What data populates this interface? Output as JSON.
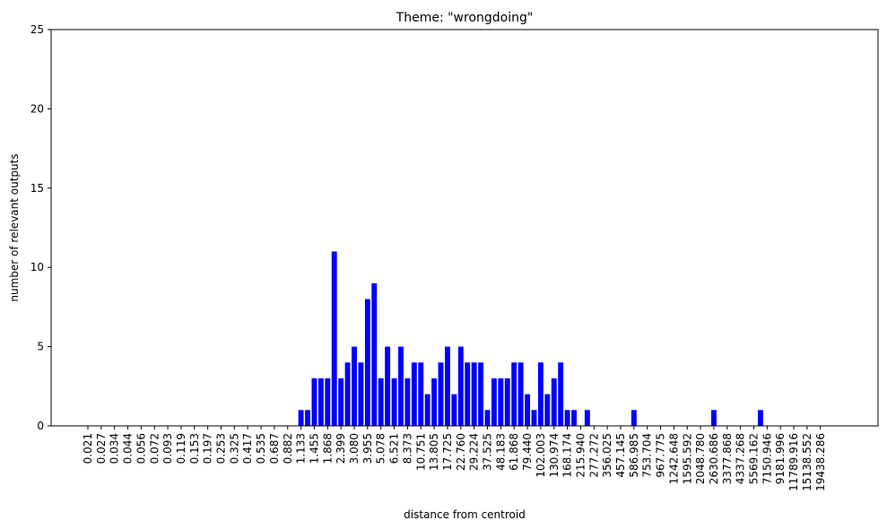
{
  "chart_data": {
    "type": "bar",
    "title": "Theme: \"wrongdoing\"",
    "xlabel": "distance from centroid",
    "ylabel": "number of relevant outputs",
    "ylim": [
      0,
      25
    ],
    "yticks": [
      0,
      5,
      10,
      15,
      20,
      25
    ],
    "bar_color": "#0000ff",
    "tick_labels": [
      "0.021",
      "0.027",
      "0.034",
      "0.044",
      "0.056",
      "0.072",
      "0.093",
      "0.119",
      "0.153",
      "0.197",
      "0.253",
      "0.325",
      "0.417",
      "0.535",
      "0.687",
      "0.882",
      "1.133",
      "1.455",
      "1.868",
      "2.399",
      "3.080",
      "3.955",
      "5.078",
      "6.521",
      "8.373",
      "10.751",
      "13.805",
      "17.725",
      "22.760",
      "29.224",
      "37.525",
      "48.183",
      "61.868",
      "79.440",
      "102.003",
      "130.974",
      "168.174",
      "215.940",
      "277.272",
      "356.025",
      "457.145",
      "586.985",
      "753.704",
      "967.775",
      "1242.648",
      "1595.592",
      "2048.780",
      "2630.686",
      "3377.868",
      "4337.268",
      "5569.162",
      "7150.946",
      "9181.996",
      "11789.916",
      "15138.552",
      "19438.286"
    ],
    "values": [
      0,
      0,
      0,
      0,
      0,
      0,
      0,
      0,
      0,
      0,
      0,
      0,
      0,
      0,
      0,
      0,
      0,
      0,
      0,
      0,
      0,
      0,
      0,
      0,
      0,
      0,
      0,
      0,
      0,
      0,
      0,
      0,
      1,
      1,
      3,
      3,
      3,
      11,
      3,
      4,
      5,
      4,
      8,
      9,
      3,
      5,
      3,
      5,
      3,
      4,
      4,
      2,
      3,
      4,
      5,
      2,
      5,
      4,
      4,
      4,
      1,
      3,
      3,
      3,
      4,
      4,
      2,
      1,
      4,
      2,
      3,
      4,
      1,
      1,
      0,
      1,
      0,
      0,
      0,
      0,
      0,
      0,
      1,
      0,
      0,
      0,
      0,
      0,
      0,
      0,
      0,
      0,
      0,
      0,
      1,
      0,
      0,
      0,
      0,
      0,
      0,
      1,
      0,
      0,
      0,
      0,
      0,
      0,
      0,
      0,
      0,
      0
    ]
  }
}
